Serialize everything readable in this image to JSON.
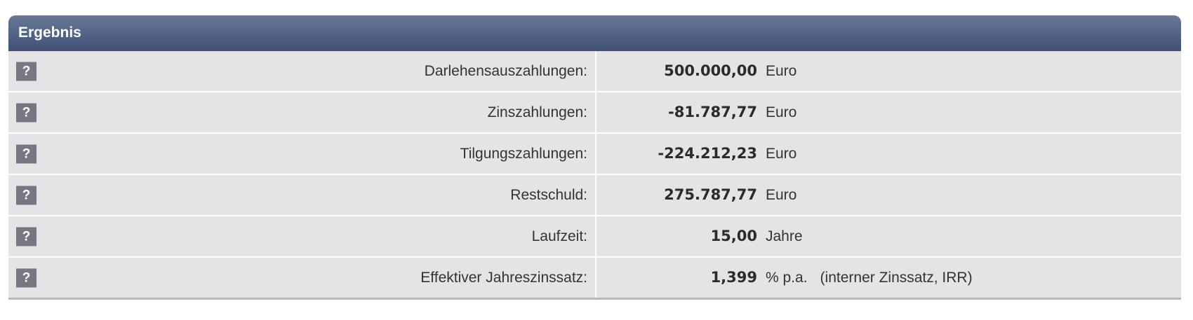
{
  "header": {
    "title": "Ergebnis"
  },
  "help_label": "?",
  "rows": [
    {
      "label": "Darlehensauszahlungen:",
      "value": "500.000,00",
      "unit": "Euro",
      "note": ""
    },
    {
      "label": "Zinszahlungen:",
      "value": "-81.787,77",
      "unit": "Euro",
      "note": ""
    },
    {
      "label": "Tilgungszahlungen:",
      "value": "-224.212,23",
      "unit": "Euro",
      "note": ""
    },
    {
      "label": "Restschuld:",
      "value": "275.787,77",
      "unit": "Euro",
      "note": ""
    },
    {
      "label": "Laufzeit:",
      "value": "15,00",
      "unit": "Jahre",
      "note": ""
    },
    {
      "label": "Effektiver Jahreszinssatz:",
      "value": "1,399",
      "unit": "% p.a.",
      "note": "(interner Zinssatz, IRR)"
    }
  ]
}
